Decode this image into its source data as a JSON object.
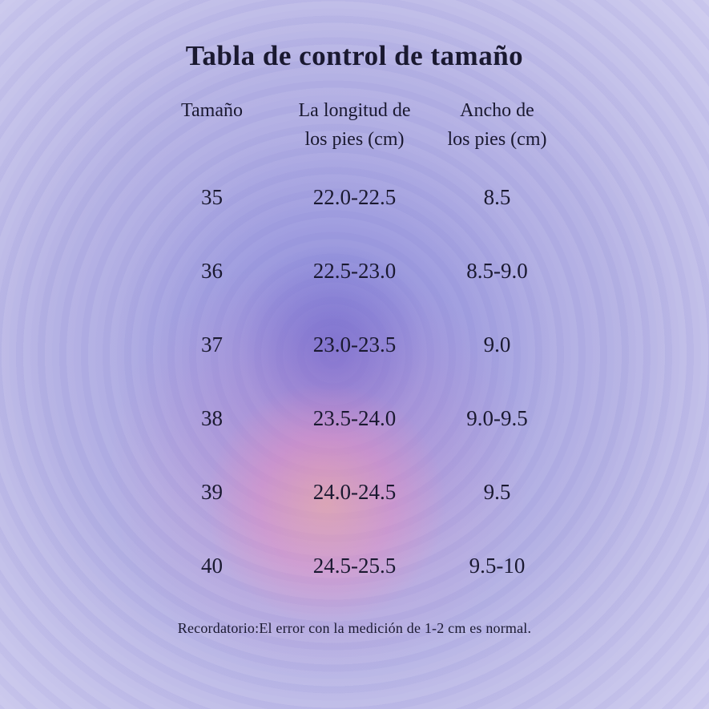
{
  "title": "Tabla de control de tamaño",
  "table": {
    "headers": [
      {
        "line1": "Tamaño",
        "line2": ""
      },
      {
        "line1": "La longitud de",
        "line2": "los pies (cm)"
      },
      {
        "line1": "Ancho de",
        "line2": "los pies (cm)"
      }
    ],
    "rows": [
      {
        "size": "35",
        "length": "22.0-22.5",
        "width": "8.5"
      },
      {
        "size": "36",
        "length": "22.5-23.0",
        "width": "8.5-9.0"
      },
      {
        "size": "37",
        "length": "23.0-23.5",
        "width": "9.0"
      },
      {
        "size": "38",
        "length": "23.5-24.0",
        "width": "9.0-9.5"
      },
      {
        "size": "39",
        "length": "24.0-24.5",
        "width": "9.5"
      },
      {
        "size": "40",
        "length": "24.5-25.5",
        "width": "9.5-10"
      }
    ]
  },
  "footer": "Recordatorio:El error con la medición de 1-2 cm es normal.",
  "colors": {
    "background": "#b6b3e4",
    "center_glow": "#6a6ad0",
    "pink_glow": "#f08cc0",
    "salmon_glow": "#ffaf96",
    "text": "#1a1930"
  },
  "chart_data": {
    "type": "table",
    "title": "Tabla de control de tamaño",
    "columns": [
      "Tamaño",
      "La longitud de los pies (cm)",
      "Ancho de los pies (cm)"
    ],
    "rows": [
      [
        "35",
        "22.0-22.5",
        "8.5"
      ],
      [
        "36",
        "22.5-23.0",
        "8.5-9.0"
      ],
      [
        "37",
        "23.0-23.5",
        "9.0"
      ],
      [
        "38",
        "23.5-24.0",
        "9.0-9.5"
      ],
      [
        "39",
        "24.0-24.5",
        "9.5"
      ],
      [
        "40",
        "24.5-25.5",
        "9.5-10"
      ]
    ],
    "note": "Recordatorio:El error con la medición de 1-2 cm es normal."
  }
}
